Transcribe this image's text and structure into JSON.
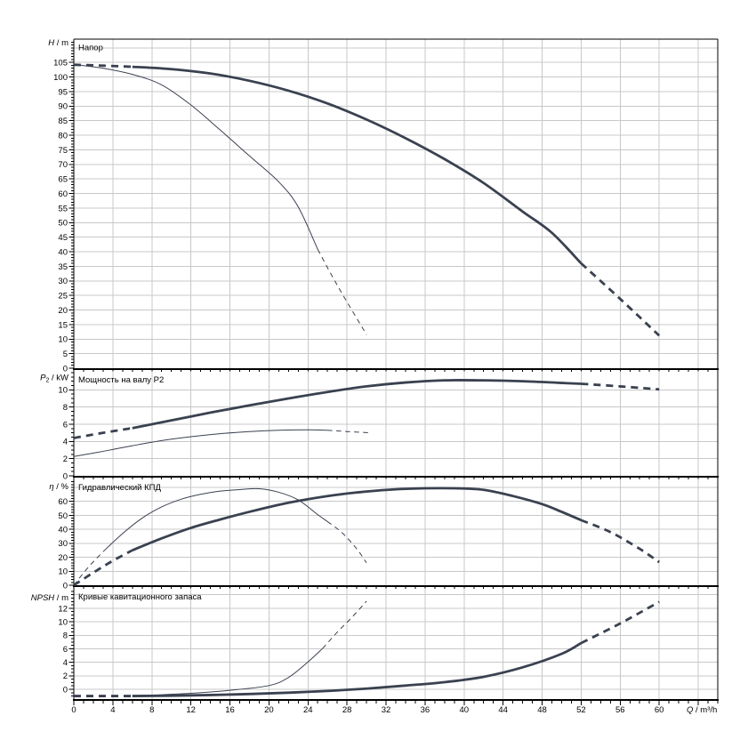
{
  "figure": {
    "background": "#ffffff",
    "curve_color": "#3a4150",
    "grid_color": "#c8c8c8",
    "frame_color": "#000000"
  },
  "x_axis": {
    "title_var": "Q",
    "title_sub": "",
    "title_unit": " / m³/h",
    "min": 0,
    "max": 66,
    "grid_step": 4,
    "minor_step": 1,
    "labels": [
      0,
      4,
      8,
      12,
      16,
      20,
      24,
      28,
      32,
      36,
      40,
      44,
      48,
      52,
      56,
      60
    ]
  },
  "chart_data": [
    {
      "id": "head",
      "type": "line",
      "title": "Напор",
      "ylabel_var": "H",
      "ylabel_sub": "",
      "ylabel_unit": " / m",
      "ymax": 113,
      "y_grid_step": 5,
      "y_minor_step": 1,
      "y_label_step": 5,
      "y_label_max": 105,
      "label_shift": 0,
      "ylabels": [
        0,
        5,
        10,
        15,
        20,
        25,
        30,
        35,
        40,
        45,
        50,
        55,
        60,
        65,
        70,
        75,
        80,
        85,
        90,
        95,
        100,
        105
      ],
      "series": [
        {
          "name": "selected-pump-head-curve",
          "style": "thick",
          "segments": [
            {
              "dashed": true,
              "points": [
                [
                  0,
                  104.2
                ],
                [
                  3,
                  103.9
                ],
                [
                  6,
                  103.5
                ]
              ]
            },
            {
              "dashed": false,
              "points": [
                [
                  6,
                  103.5
                ],
                [
                  10,
                  102.7
                ],
                [
                  14,
                  101.2
                ],
                [
                  18,
                  98.7
                ],
                [
                  22,
                  95.3
                ],
                [
                  26,
                  90.9
                ],
                [
                  30,
                  85.4
                ],
                [
                  34,
                  79.0
                ],
                [
                  38,
                  71.8
                ],
                [
                  42,
                  63.6
                ],
                [
                  46,
                  53.8
                ],
                [
                  49,
                  46.5
                ],
                [
                  52,
                  36.0
                ]
              ]
            },
            {
              "dashed": true,
              "points": [
                [
                  52,
                  36.0
                ],
                [
                  56,
                  23.8
                ],
                [
                  60,
                  11.2
                ]
              ]
            }
          ]
        },
        {
          "name": "reference-pump-head-curve",
          "style": "thin",
          "segments": [
            {
              "dashed": false,
              "points": [
                [
                  0,
                  104.3
                ],
                [
                  3,
                  103.0
                ],
                [
                  6,
                  100.9
                ],
                [
                  9,
                  97.3
                ],
                [
                  12,
                  90.4
                ],
                [
                  15,
                  81.8
                ],
                [
                  18,
                  72.9
                ],
                [
                  21,
                  64.0
                ],
                [
                  23,
                  55.4
                ],
                [
                  25,
                  40.8
                ]
              ]
            },
            {
              "dashed": true,
              "points": [
                [
                  25,
                  40.8
                ],
                [
                  27,
                  28.5
                ],
                [
                  30,
                  11.5
                ]
              ]
            }
          ]
        }
      ]
    },
    {
      "id": "power",
      "type": "line",
      "title": "Мощность на валу P2",
      "ylabel_var": "P",
      "ylabel_sub": "2",
      "ylabel_unit": " / kW",
      "ymax": 12.15,
      "y_grid_step": 2,
      "y_minor_step": 0.5,
      "y_label_step": 2,
      "y_label_max": 10,
      "label_shift": 0,
      "ylabels": [
        0,
        2,
        4,
        6,
        8,
        10
      ],
      "series": [
        {
          "name": "selected-pump-power-curve",
          "style": "thick",
          "segments": [
            {
              "dashed": true,
              "points": [
                [
                  0,
                  4.4
                ],
                [
                  3,
                  5.0
                ],
                [
                  6,
                  5.55
                ]
              ]
            },
            {
              "dashed": false,
              "points": [
                [
                  6,
                  5.55
                ],
                [
                  10,
                  6.45
                ],
                [
                  14,
                  7.35
                ],
                [
                  18,
                  8.2
                ],
                [
                  22,
                  9.0
                ],
                [
                  26,
                  9.75
                ],
                [
                  30,
                  10.4
                ],
                [
                  34,
                  10.85
                ],
                [
                  38,
                  11.1
                ],
                [
                  42,
                  11.1
                ],
                [
                  46,
                  11.0
                ],
                [
                  50,
                  10.8
                ],
                [
                  52,
                  10.7
                ]
              ]
            },
            {
              "dashed": true,
              "points": [
                [
                  52,
                  10.7
                ],
                [
                  56,
                  10.4
                ],
                [
                  60,
                  10.05
                ]
              ]
            }
          ]
        },
        {
          "name": "reference-pump-power-curve",
          "style": "thin",
          "segments": [
            {
              "dashed": false,
              "points": [
                [
                  0,
                  2.25
                ],
                [
                  3,
                  2.85
                ],
                [
                  6,
                  3.5
                ],
                [
                  9,
                  4.1
                ],
                [
                  12,
                  4.55
                ],
                [
                  15,
                  4.9
                ],
                [
                  18,
                  5.15
                ],
                [
                  21,
                  5.3
                ],
                [
                  24,
                  5.35
                ],
                [
                  26,
                  5.3
                ]
              ]
            },
            {
              "dashed": true,
              "points": [
                [
                  26,
                  5.3
                ],
                [
                  28,
                  5.15
                ],
                [
                  30.5,
                  5.0
                ]
              ]
            }
          ]
        }
      ]
    },
    {
      "id": "efficiency",
      "type": "line",
      "title": "Гидравлический КПД",
      "ylabel_var": "η",
      "ylabel_sub": "",
      "ylabel_unit": " / %",
      "ymax": 76,
      "y_grid_step": 10,
      "y_minor_step": 2,
      "y_label_step": 10,
      "y_label_max": 60,
      "label_shift": 0,
      "ylabels": [
        0,
        10,
        20,
        30,
        40,
        50,
        60
      ],
      "series": [
        {
          "name": "selected-pump-efficiency-curve",
          "style": "thick",
          "segments": [
            {
              "dashed": true,
              "points": [
                [
                  0,
                  0
                ],
                [
                  2,
                  9
                ],
                [
                  4,
                  17.5
                ],
                [
                  6,
                  25
                ]
              ]
            },
            {
              "dashed": false,
              "points": [
                [
                  6,
                  25
                ],
                [
                  9,
                  33.5
                ],
                [
                  12,
                  41
                ],
                [
                  15,
                  47
                ],
                [
                  18,
                  52.5
                ],
                [
                  21,
                  57.5
                ],
                [
                  24,
                  61.5
                ],
                [
                  27,
                  64.7
                ],
                [
                  30,
                  67
                ],
                [
                  33,
                  68.6
                ],
                [
                  36,
                  69.3
                ],
                [
                  39,
                  69.3
                ],
                [
                  42,
                  68.2
                ],
                [
                  45,
                  63.8
                ],
                [
                  48,
                  58
                ],
                [
                  50,
                  52.5
                ],
                [
                  52,
                  46.5
                ]
              ]
            },
            {
              "dashed": true,
              "points": [
                [
                  52,
                  46.5
                ],
                [
                  55,
                  38
                ],
                [
                  58,
                  26
                ],
                [
                  60,
                  16.5
                ]
              ]
            }
          ]
        },
        {
          "name": "reference-pump-efficiency-curve",
          "style": "thin",
          "segments": [
            {
              "dashed": true,
              "points": [
                [
                  0,
                  0
                ],
                [
                  1.5,
                  13
                ],
                [
                  3,
                  24
                ]
              ]
            },
            {
              "dashed": false,
              "points": [
                [
                  3,
                  24
                ],
                [
                  5,
                  37
                ],
                [
                  7,
                  48
                ],
                [
                  9,
                  56
                ],
                [
                  11,
                  61.5
                ],
                [
                  13,
                  65
                ],
                [
                  15,
                  67.3
                ],
                [
                  17,
                  68.4
                ],
                [
                  19,
                  69
                ],
                [
                  21,
                  66.5
                ],
                [
                  23,
                  61
                ],
                [
                  25,
                  50.5
                ],
                [
                  26,
                  45.5
                ]
              ]
            },
            {
              "dashed": true,
              "points": [
                [
                  26,
                  45.5
                ],
                [
                  27.5,
                  37.5
                ],
                [
                  29,
                  26
                ],
                [
                  30,
                  16
                ]
              ]
            }
          ]
        }
      ]
    },
    {
      "id": "npsh",
      "type": "line",
      "title": "Кривые кавитационного запаса",
      "ylabel_var": "NPSH",
      "ylabel_sub": "",
      "ylabel_unit": " / m",
      "ymax": 16.4,
      "y_grid_step": 2,
      "y_minor_step": 0.5,
      "y_label_step": 2,
      "y_label_max": 12,
      "label_shift": 1.45,
      "ylabels": [
        0,
        2,
        4,
        6,
        8,
        10,
        12
      ],
      "series": [
        {
          "name": "selected-pump-npsh-curve",
          "style": "thick",
          "segments": [
            {
              "dashed": true,
              "points": [
                [
                  0,
                  0.45
                ],
                [
                  3,
                  0.45
                ],
                [
                  6,
                  0.45
                ]
              ]
            },
            {
              "dashed": false,
              "points": [
                [
                  6,
                  0.45
                ],
                [
                  10,
                  0.5
                ],
                [
                  14,
                  0.6
                ],
                [
                  18,
                  0.75
                ],
                [
                  22,
                  0.95
                ],
                [
                  26,
                  1.2
                ],
                [
                  30,
                  1.55
                ],
                [
                  34,
                  2.0
                ],
                [
                  38,
                  2.5
                ],
                [
                  42,
                  3.3
                ],
                [
                  46,
                  4.7
                ],
                [
                  50,
                  6.7
                ],
                [
                  52,
                  8.3
                ]
              ]
            },
            {
              "dashed": true,
              "points": [
                [
                  52,
                  8.3
                ],
                [
                  56,
                  11.2
                ],
                [
                  60,
                  14.4
                ]
              ]
            }
          ]
        },
        {
          "name": "reference-pump-npsh-curve",
          "style": "thin",
          "segments": [
            {
              "dashed": false,
              "points": [
                [
                  6,
                  0.55
                ],
                [
                  9,
                  0.65
                ],
                [
                  12,
                  0.85
                ],
                [
                  16,
                  1.3
                ],
                [
                  20,
                  2.0
                ],
                [
                  22,
                  3.2
                ],
                [
                  24,
                  5.5
                ],
                [
                  25.5,
                  7.5
                ]
              ]
            },
            {
              "dashed": true,
              "points": [
                [
                  25.5,
                  7.5
                ],
                [
                  27,
                  9.9
                ],
                [
                  28.5,
                  12.1
                ],
                [
                  30,
                  14.5
                ]
              ]
            }
          ]
        }
      ]
    }
  ]
}
